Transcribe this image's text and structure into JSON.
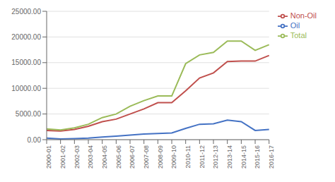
{
  "chart_data": {
    "type": "line",
    "categories": [
      "2000-01",
      "2001-02",
      "2002-03",
      "2003-04",
      "2004-05",
      "2005-06",
      "2006-07",
      "2007-08",
      "2008-09",
      "2009-10",
      "2010-11",
      "2011-12",
      "2012-13",
      "2013-14",
      "2014-15",
      "2015-16",
      "2016-17"
    ],
    "series": [
      {
        "name": "Oil",
        "color": "#4472c4",
        "values": [
          300,
          150,
          200,
          300,
          500,
          700,
          900,
          1100,
          1200,
          1300,
          2200,
          3000,
          3100,
          3800,
          3500,
          1800,
          2000
        ]
      },
      {
        "name": "Non-Oil",
        "color": "#c0504d",
        "values": [
          1800,
          1700,
          2000,
          2600,
          3500,
          4000,
          5000,
          6000,
          7200,
          7200,
          9500,
          12000,
          13000,
          15200,
          15300,
          15300,
          16400
        ]
      },
      {
        "name": "Total",
        "color": "#9bbb59",
        "values": [
          2100,
          1900,
          2300,
          3000,
          4300,
          5000,
          6500,
          7600,
          8500,
          8500,
          14800,
          16500,
          17000,
          19200,
          19200,
          17400,
          18500
        ]
      }
    ],
    "ylim": [
      0,
      25000
    ],
    "yticks": [
      {
        "value": 0,
        "label": "0.00"
      },
      {
        "value": 5000,
        "label": "5000.00"
      },
      {
        "value": 10000,
        "label": "10000.00"
      },
      {
        "value": 15000,
        "label": "15000.00"
      },
      {
        "value": 20000,
        "label": "20000.00"
      },
      {
        "value": 25000,
        "label": "25000.00"
      }
    ],
    "grid": true,
    "legend": "right"
  }
}
